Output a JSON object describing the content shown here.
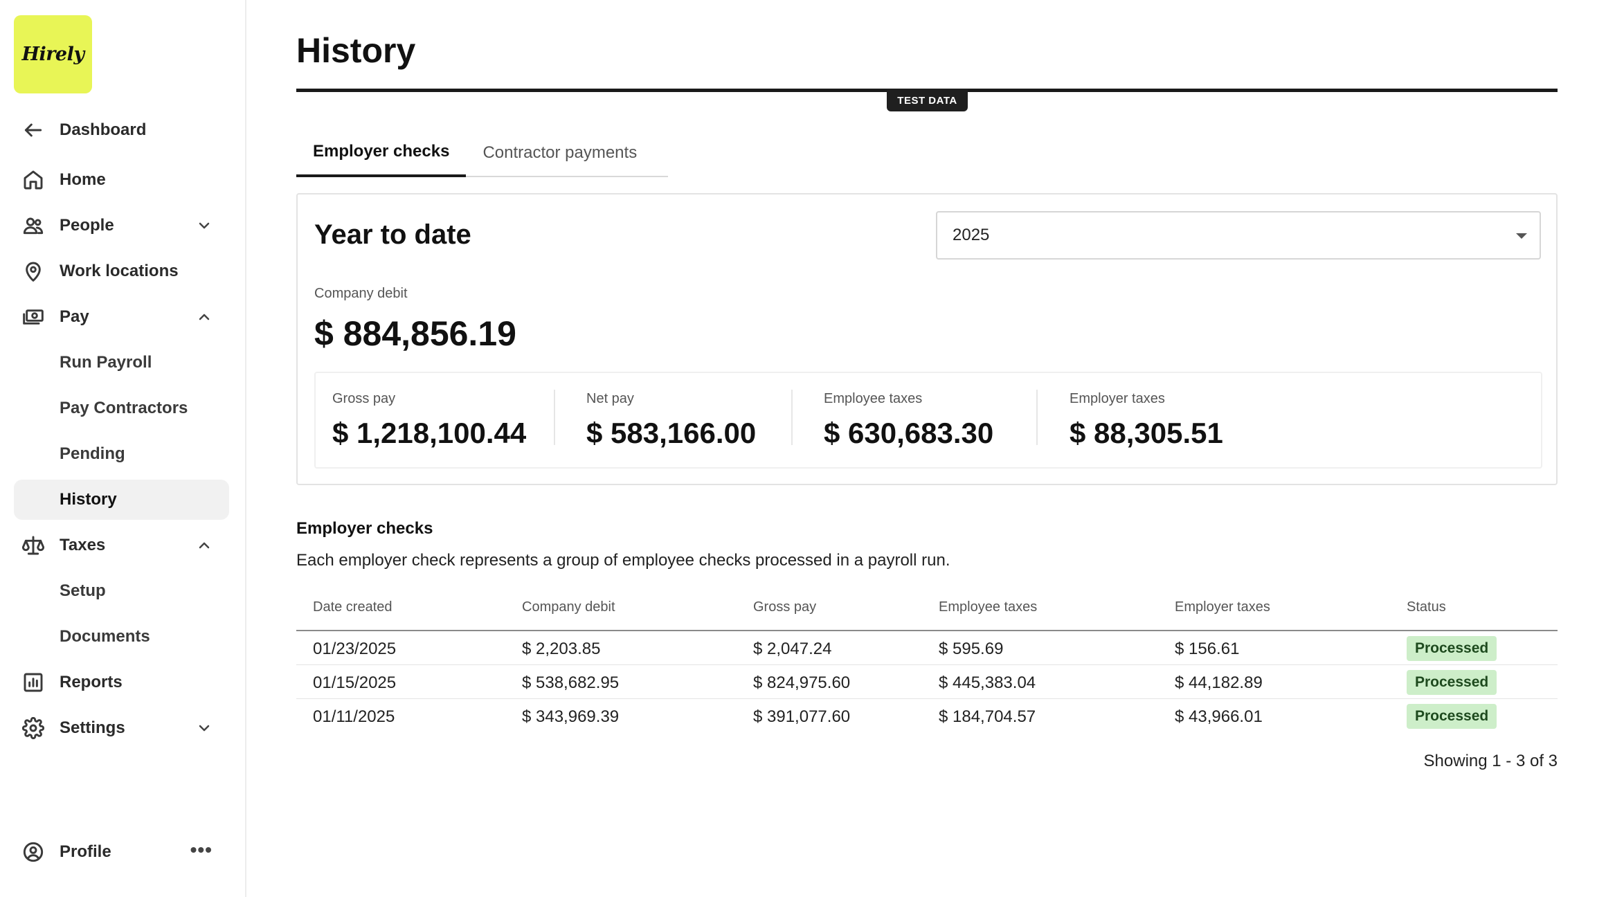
{
  "brand": {
    "logo_text": "Hirely"
  },
  "sidebar": {
    "back": {
      "label": "Dashboard",
      "icon": "arrow-left-icon"
    },
    "items": [
      {
        "label": "Home",
        "icon": "home-icon"
      },
      {
        "label": "People",
        "icon": "people-icon",
        "expanded": false
      },
      {
        "label": "Work locations",
        "icon": "map-pin-icon"
      },
      {
        "label": "Pay",
        "icon": "money-icon",
        "expanded": true
      },
      {
        "label": "Taxes",
        "icon": "scale-icon",
        "expanded": true
      },
      {
        "label": "Reports",
        "icon": "chart-icon"
      },
      {
        "label": "Settings",
        "icon": "gear-icon",
        "expanded": false
      }
    ],
    "pay_sub": [
      "Run Payroll",
      "Pay Contractors",
      "Pending",
      "History"
    ],
    "taxes_sub": [
      "Setup",
      "Documents"
    ],
    "active": "History",
    "profile": {
      "label": "Profile",
      "more": "•••"
    }
  },
  "header": {
    "title": "History",
    "test_badge": "TEST DATA"
  },
  "tabs": [
    {
      "label": "Employer checks",
      "active": true
    },
    {
      "label": "Contractor payments",
      "active": false
    }
  ],
  "ytd": {
    "title": "Year to date",
    "year": "2025",
    "company_debit_label": "Company debit",
    "company_debit_value": "$ 884,856.19",
    "stats": [
      {
        "label": "Gross pay",
        "value": "$ 1,218,100.44"
      },
      {
        "label": "Net pay",
        "value": "$ 583,166.00"
      },
      {
        "label": "Employee taxes",
        "value": "$ 630,683.30"
      },
      {
        "label": "Employer taxes",
        "value": "$ 88,305.51"
      }
    ]
  },
  "checks": {
    "title": "Employer checks",
    "description": "Each employer check represents a group of employee checks processed in a payroll run.",
    "columns": [
      "Date created",
      "Company debit",
      "Gross pay",
      "Employee taxes",
      "Employer taxes",
      "Status"
    ],
    "rows": [
      [
        "01/23/2025",
        "$ 2,203.85",
        "$ 2,047.24",
        "$ 595.69",
        "$ 156.61",
        "Processed"
      ],
      [
        "01/15/2025",
        "$ 538,682.95",
        "$ 824,975.60",
        "$ 445,383.04",
        "$ 44,182.89",
        "Processed"
      ],
      [
        "01/11/2025",
        "$ 343,969.39",
        "$ 391,077.60",
        "$ 184,704.57",
        "$ 43,966.01",
        "Processed"
      ]
    ],
    "pagination": "Showing 1 - 3 of 3"
  },
  "colors": {
    "brand_yellow": "#e8f556",
    "status_green_bg": "#cdeec9",
    "status_green_text": "#1e4a1e"
  }
}
